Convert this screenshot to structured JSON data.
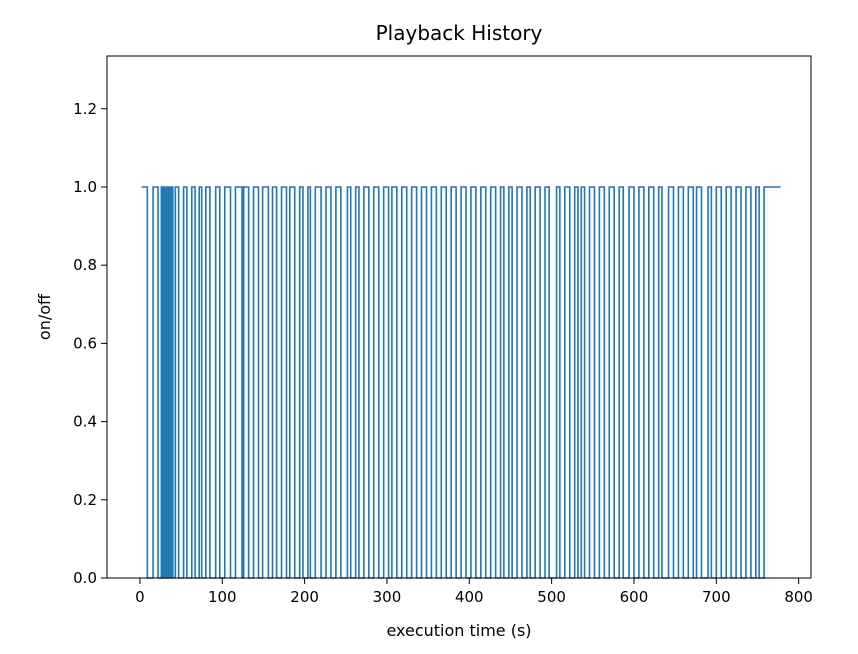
{
  "chart_data": {
    "type": "line",
    "title": "Playback History",
    "xlabel": "execution time (s)",
    "ylabel": "on/off",
    "xlim": [
      -40,
      815
    ],
    "ylim": [
      0.0,
      1.335
    ],
    "xticks": [
      0,
      100,
      200,
      300,
      400,
      500,
      600,
      700,
      800
    ],
    "xtick_labels": [
      "0",
      "100",
      "200",
      "300",
      "400",
      "500",
      "600",
      "700",
      "800"
    ],
    "yticks": [
      0.0,
      0.2,
      0.4,
      0.6,
      0.8,
      1.0,
      1.2
    ],
    "ytick_labels": [
      "0.0",
      "0.2",
      "0.4",
      "0.6",
      "0.8",
      "1.0",
      "1.2"
    ],
    "grid": false,
    "legend": "none",
    "line_color": "#1f77b4",
    "step_style": "pre",
    "series": [
      {
        "name": "",
        "x": [
          2,
          9,
          16,
          22,
          26,
          27,
          29,
          30,
          32,
          33,
          35,
          36,
          38,
          40,
          43,
          47,
          53,
          57,
          63,
          67,
          72,
          75,
          80,
          85,
          92,
          97,
          103,
          110,
          116,
          124,
          126,
          132,
          138,
          144,
          149,
          156,
          161,
          166,
          172,
          178,
          182,
          188,
          194,
          198,
          204,
          207,
          213,
          220,
          226,
          232,
          238,
          244,
          252,
          256,
          262,
          266,
          272,
          278,
          284,
          290,
          296,
          302,
          306,
          312,
          318,
          324,
          330,
          336,
          342,
          348,
          354,
          360,
          366,
          372,
          378,
          384,
          390,
          396,
          402,
          408,
          414,
          420,
          426,
          432,
          438,
          442,
          448,
          452,
          458,
          464,
          470,
          474,
          480,
          486,
          492,
          497,
          506,
          510,
          516,
          522,
          528,
          532,
          536,
          540,
          546,
          552,
          558,
          564,
          570,
          576,
          582,
          587,
          594,
          600,
          606,
          612,
          618,
          624,
          630,
          634,
          642,
          648,
          654,
          660,
          666,
          672,
          676,
          682,
          690,
          694,
          700,
          706,
          712,
          718,
          724,
          730,
          736,
          742,
          748,
          752,
          758,
          765,
          772,
          778
        ],
        "values": [
          1,
          0,
          1,
          0,
          1,
          0,
          1,
          0,
          1,
          0,
          1,
          0,
          1,
          0,
          1,
          0,
          1,
          0,
          1,
          0,
          1,
          0,
          1,
          0,
          1,
          0,
          1,
          0,
          1,
          0,
          1,
          0,
          1,
          0,
          1,
          0,
          1,
          0,
          1,
          0,
          1,
          0,
          1,
          0,
          1,
          0,
          1,
          0,
          1,
          0,
          1,
          0,
          1,
          0,
          1,
          0,
          1,
          0,
          1,
          0,
          1,
          0,
          1,
          0,
          1,
          0,
          1,
          0,
          1,
          0,
          1,
          0,
          1,
          0,
          1,
          0,
          1,
          0,
          1,
          0,
          1,
          0,
          1,
          0,
          1,
          0,
          1,
          0,
          1,
          0,
          1,
          0,
          1,
          0,
          1,
          0,
          1,
          0,
          1,
          0,
          1,
          0,
          1,
          0,
          1,
          0,
          1,
          0,
          1,
          0,
          1,
          0,
          1,
          0,
          1,
          0,
          1,
          0,
          1,
          0,
          1,
          0,
          1,
          0,
          1,
          0,
          1,
          0,
          1,
          0,
          1,
          0,
          1,
          0,
          1,
          0,
          1,
          0,
          1,
          0,
          1,
          1,
          1,
          1
        ]
      }
    ]
  }
}
